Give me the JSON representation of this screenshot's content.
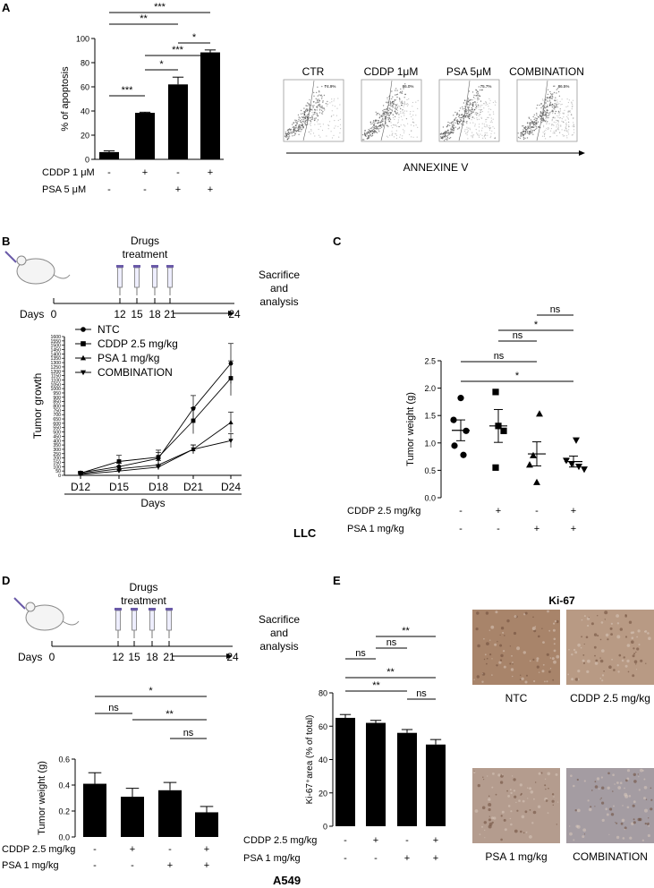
{
  "panel_labels": {
    "A": "A",
    "B": "B",
    "C": "C",
    "D": "D",
    "E": "E"
  },
  "cell_line_labels": {
    "llc": "LLC",
    "a549": "A549"
  },
  "chart_data": [
    {
      "id": "A-bar",
      "type": "bar",
      "ylabel": "% of apoptosis",
      "ylim": [
        0,
        100
      ],
      "yticks": [
        "0",
        "20",
        "40",
        "60",
        "80",
        "100"
      ],
      "values": [
        6,
        38.5,
        62,
        88.5
      ],
      "errors": [
        1,
        0.5,
        6,
        2
      ],
      "row_labels": [
        "CDDP 1 μM",
        "PSA 5 μM"
      ],
      "rows": [
        [
          "-",
          "+",
          "-",
          "+"
        ],
        [
          "-",
          "-",
          "+",
          "+"
        ]
      ],
      "significance": [
        {
          "from": 0,
          "to": 3,
          "text": "***"
        },
        {
          "from": 0,
          "to": 2,
          "text": "**"
        },
        {
          "from": 2,
          "to": 3,
          "text": "*"
        },
        {
          "from": 1,
          "to": 3,
          "text": "***"
        },
        {
          "from": 1,
          "to": 2,
          "text": "*"
        },
        {
          "from": 0,
          "to": 1,
          "text": "***"
        }
      ]
    },
    {
      "id": "B-line",
      "type": "line",
      "xlabel": "Days",
      "ylabel": "Tumor growth",
      "categories": [
        "D12",
        "D15",
        "D18",
        "D21",
        "D24"
      ],
      "ylim": [
        0,
        1600
      ],
      "yticks": [
        "0",
        "50",
        "100",
        "150",
        "200",
        "250",
        "300",
        "350",
        "400",
        "450",
        "500",
        "550",
        "600",
        "650",
        "700",
        "750",
        "800",
        "850",
        "900",
        "950",
        "1000",
        "1050",
        "1100",
        "1150",
        "1200",
        "1250",
        "1300",
        "1350",
        "1400",
        "1450",
        "1500",
        "1550",
        "1600"
      ],
      "series": [
        {
          "name": "NTC",
          "marker": "circle",
          "values": [
            30,
            100,
            195,
            770,
            1290
          ],
          "errors": [
            15,
            40,
            70,
            150,
            230
          ]
        },
        {
          "name": "CDDP 2.5 mg/kg",
          "marker": "square",
          "values": [
            25,
            160,
            210,
            630,
            1120
          ],
          "errors": [
            15,
            70,
            80,
            150,
            200
          ]
        },
        {
          "name": "PSA 1 mg/kg",
          "marker": "triangle-up",
          "values": [
            20,
            75,
            120,
            300,
            610
          ],
          "errors": [
            10,
            30,
            50,
            50,
            120
          ]
        },
        {
          "name": "COMBINATION",
          "marker": "triangle-down",
          "values": [
            10,
            50,
            95,
            300,
            400
          ],
          "errors": [
            10,
            20,
            30,
            50,
            80
          ]
        }
      ]
    },
    {
      "id": "C-scatter",
      "type": "scatter",
      "ylabel": "Tumor weight (g)",
      "ylim": [
        0,
        2.5
      ],
      "yticks": [
        "0.0",
        "0.5",
        "1.0",
        "1.5",
        "2.0",
        "2.5"
      ],
      "means": [
        1.23,
        1.31,
        0.8,
        0.66
      ],
      "sems": [
        0.19,
        0.3,
        0.22,
        0.1
      ],
      "groups": [
        {
          "marker": "circle",
          "points": [
            1.82,
            1.42,
            1.22,
            0.95,
            0.78
          ]
        },
        {
          "marker": "square",
          "points": [
            1.93,
            1.31,
            1.22,
            0.55
          ]
        },
        {
          "marker": "triangle-up",
          "points": [
            1.53,
            0.77,
            0.6,
            0.28
          ]
        },
        {
          "marker": "triangle-down",
          "points": [
            1.05,
            0.68,
            0.62,
            0.57,
            0.52
          ]
        }
      ],
      "row_labels": [
        "CDDP 2.5 mg/kg",
        "PSA 1 mg/kg"
      ],
      "rows": [
        [
          "-",
          "+",
          "-",
          "+"
        ],
        [
          "-",
          "-",
          "+",
          "+"
        ]
      ],
      "significance": [
        {
          "from": 0,
          "to": 3,
          "text": "*"
        },
        {
          "from": 0,
          "to": 2,
          "text": "ns"
        },
        {
          "from": 1,
          "to": 2,
          "text": "ns"
        },
        {
          "from": 1,
          "to": 3,
          "text": "*"
        },
        {
          "from": 2,
          "to": 3,
          "text": "ns"
        }
      ]
    },
    {
      "id": "D-bar",
      "type": "bar",
      "ylabel": "Tumor weight (g)",
      "ylim": [
        0,
        0.6
      ],
      "yticks": [
        "0.0",
        "0.2",
        "0.4",
        "0.6"
      ],
      "values": [
        0.41,
        0.31,
        0.36,
        0.19
      ],
      "errors": [
        0.085,
        0.065,
        0.06,
        0.045
      ],
      "row_labels": [
        "CDDP 2.5 mg/kg",
        "PSA 1 mg/kg"
      ],
      "rows": [
        [
          "-",
          "+",
          "-",
          "+"
        ],
        [
          "-",
          "-",
          "+",
          "+"
        ]
      ],
      "significance": [
        {
          "from": 0,
          "to": 3,
          "text": "*"
        },
        {
          "from": 0,
          "to": 1,
          "text": "ns"
        },
        {
          "from": 1,
          "to": 3,
          "text": "**"
        },
        {
          "from": 2,
          "to": 3,
          "text": "ns"
        }
      ]
    },
    {
      "id": "E-bar",
      "type": "bar",
      "ylabel": "Ki-67⁺area (% of total)",
      "ylim": [
        0,
        80
      ],
      "yticks": [
        "0",
        "20",
        "40",
        "60",
        "80"
      ],
      "values": [
        65,
        62,
        56,
        49
      ],
      "errors": [
        2,
        1.5,
        2,
        3
      ],
      "row_labels": [
        "CDDP 2.5 mg/kg",
        "PSA 1 mg/kg"
      ],
      "rows": [
        [
          "-",
          "+",
          "-",
          "+"
        ],
        [
          "-",
          "-",
          "+",
          "+"
        ]
      ],
      "significance": [
        {
          "from": 1,
          "to": 3,
          "text": "**"
        },
        {
          "from": 1,
          "to": 2,
          "text": "ns"
        },
        {
          "from": 0,
          "to": 1,
          "text": "ns"
        },
        {
          "from": 0,
          "to": 3,
          "text": "**"
        },
        {
          "from": 0,
          "to": 2,
          "text": "**"
        },
        {
          "from": 2,
          "to": 3,
          "text": "ns"
        }
      ]
    }
  ],
  "flow": {
    "titles": [
      "CTR",
      "CDDP 1μM",
      "PSA 5μM",
      "COMBINATION"
    ],
    "values": [
      "74.9%",
      "86.0%",
      "75.7%",
      "86.5%"
    ],
    "axis_label": "ANNEXINE V",
    "axis_color": "#000000"
  },
  "timelines": [
    {
      "id": "B",
      "drugs_label": "Drugs\ntreatment",
      "days_label": "Days",
      "start": "0",
      "ticks": [
        "12",
        "15",
        "18",
        "21"
      ],
      "end": "24",
      "end_label": "Sacrifice\nand\nanalysis"
    },
    {
      "id": "D",
      "drugs_label": "Drugs\ntreatment",
      "days_label": "Days",
      "start": "0",
      "ticks": [
        "12",
        "15",
        "18",
        "21"
      ],
      "end": "24",
      "end_label": "Sacrifice\nand\nanalysis"
    }
  ],
  "ki67": {
    "title": "Ki-67",
    "captions": [
      "NTC",
      "CDDP 2.5 mg/kg",
      "PSA 1 mg/kg",
      "COMBINATION"
    ],
    "colors": [
      "#a8846a",
      "#b89a84",
      "#b49c8e",
      "#a49ca2"
    ]
  }
}
